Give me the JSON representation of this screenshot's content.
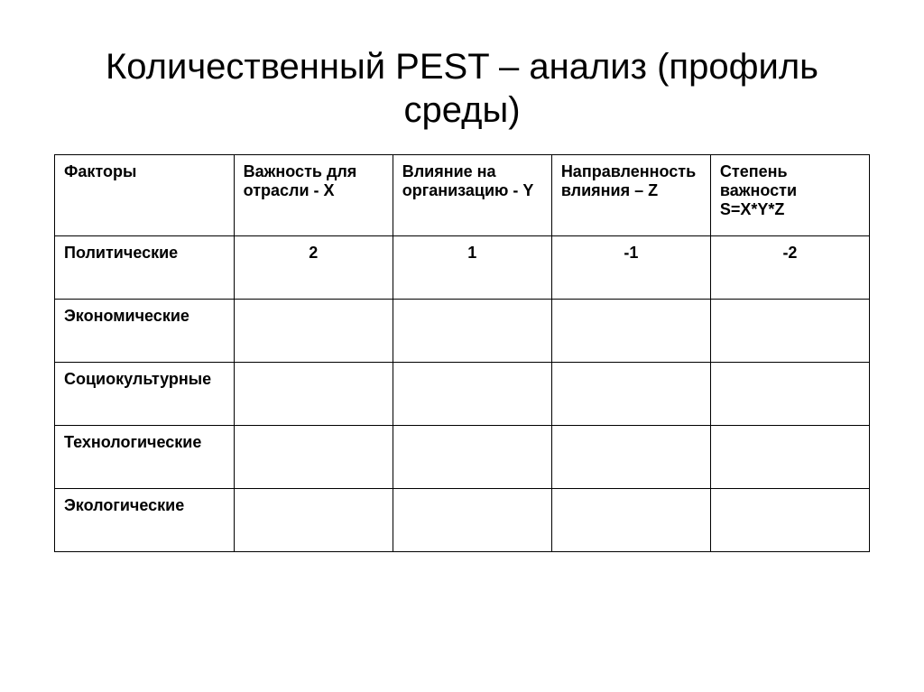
{
  "title": "Количественный PEST – анализ (профиль среды)",
  "table": {
    "headers": {
      "col0": "Факторы",
      "col1": "Важность для отрасли - X",
      "col2": "Влияние на организацию - Y",
      "col3": "Направленность влияния – Z",
      "col4_line1": "Степень важности",
      "col4_line2": "S=X*Y*Z"
    },
    "rows": [
      {
        "factor": "Политические",
        "x": "2",
        "y": "1",
        "z": "-1",
        "s": "-2"
      },
      {
        "factor": "Экономические",
        "x": "",
        "y": "",
        "z": "",
        "s": ""
      },
      {
        "factor": "Социокультурные",
        "x": "",
        "y": "",
        "z": "",
        "s": ""
      },
      {
        "factor": "Технологические",
        "x": "",
        "y": "",
        "z": "",
        "s": ""
      },
      {
        "factor": "Экологические",
        "x": "",
        "y": "",
        "z": "",
        "s": ""
      }
    ],
    "styling": {
      "border_color": "#000000",
      "background_color": "#ffffff",
      "text_color": "#000000",
      "header_font_size": 18,
      "cell_font_size": 18,
      "title_font_size": 40
    }
  }
}
